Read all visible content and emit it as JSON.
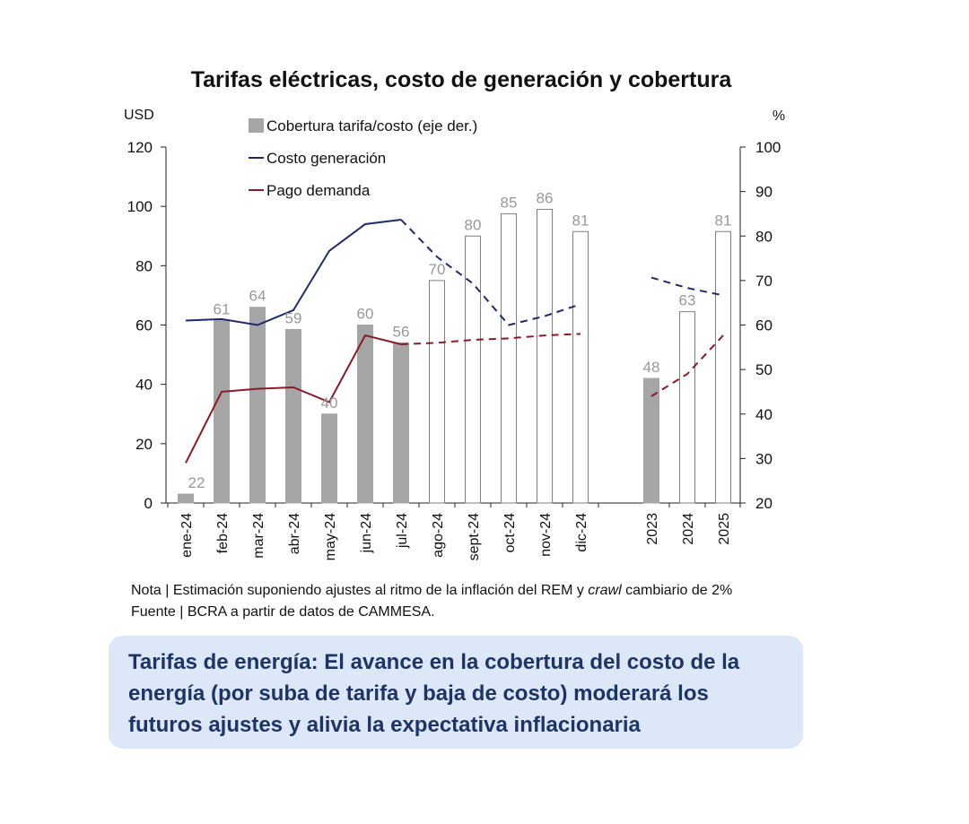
{
  "chart_data": {
    "type": "bar+line",
    "title": "Tarifas eléctricas, costo de generación y cobertura",
    "left_axis": {
      "unit": "USD",
      "range": [
        0,
        120
      ],
      "ticks": [
        0,
        20,
        40,
        60,
        80,
        100,
        120
      ]
    },
    "right_axis": {
      "unit": "%",
      "range": [
        20,
        100
      ],
      "ticks": [
        20,
        30,
        40,
        50,
        60,
        70,
        80,
        90,
        100
      ]
    },
    "categories": [
      "ene-24",
      "feb-24",
      "mar-24",
      "abr-24",
      "may-24",
      "jun-24",
      "jul-24",
      "ago-24",
      "sept-24",
      "oct-24",
      "nov-24",
      "dic-24",
      "2023",
      "2024",
      "2025"
    ],
    "series": [
      {
        "name": "Cobertura tarifa/costo (eje der.)",
        "kind": "bar",
        "axis": "right",
        "color": "#a6a6a6",
        "values": [
          22,
          61,
          64,
          59,
          40,
          60,
          56,
          70,
          80,
          85,
          86,
          81,
          48,
          63,
          81
        ],
        "estimated": [
          false,
          false,
          false,
          false,
          false,
          false,
          false,
          true,
          true,
          true,
          true,
          true,
          false,
          true,
          true
        ]
      },
      {
        "name": "Costo generación",
        "kind": "line",
        "axis": "left",
        "color": "#1f2a6b",
        "values": [
          61.5,
          62,
          60,
          65,
          85,
          94,
          95.5,
          83,
          74,
          60,
          63,
          67,
          76,
          72.5,
          70
        ],
        "estimated": [
          false,
          false,
          false,
          false,
          false,
          false,
          false,
          true,
          true,
          true,
          true,
          true,
          true,
          true,
          true
        ]
      },
      {
        "name": "Pago demanda",
        "kind": "line",
        "axis": "left",
        "color": "#8b1a28",
        "values": [
          13.5,
          37.5,
          38.5,
          39,
          34,
          56.5,
          53.5,
          54,
          55,
          55.5,
          56.5,
          57,
          36,
          43.5,
          56.5
        ],
        "estimated": [
          false,
          false,
          false,
          false,
          false,
          false,
          false,
          true,
          true,
          true,
          true,
          true,
          true,
          true,
          true
        ]
      }
    ],
    "legend_position": "top-left"
  },
  "notes": {
    "nota_prefix": "Nota | Estimación suponiendo ajustes al ritmo de la inflación del REM y ",
    "nota_italic": "crawl",
    "nota_suffix": " cambiario de 2%",
    "fuente": "Fuente | BCRA a partir de datos de CAMMESA."
  },
  "callout": {
    "text": "Tarifas de energía: El avance en la cobertura del costo de la energía (por suba de tarifa y baja de costo) moderará los futuros ajustes y alivia la expectativa inflacionaria"
  }
}
